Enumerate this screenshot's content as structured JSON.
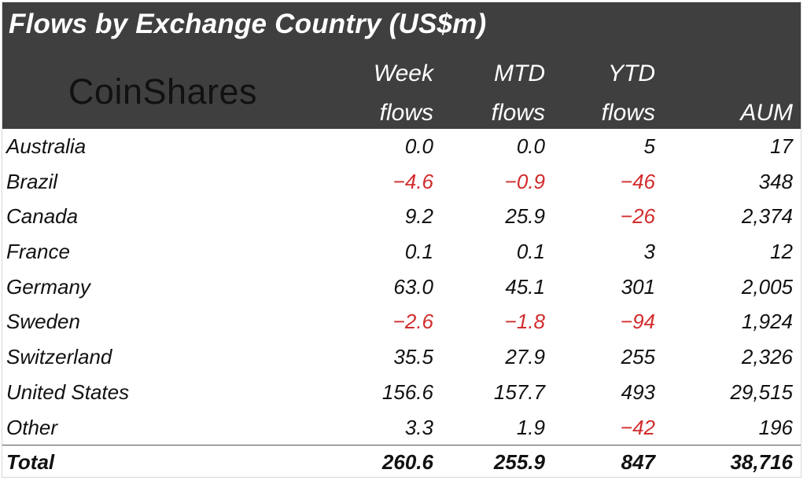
{
  "chart_data": {
    "type": "table",
    "title": "Flows by Exchange Country (US$m)",
    "logo": "CoinShares",
    "columns": [
      {
        "line1": "Week",
        "line2": "flows"
      },
      {
        "line1": "MTD",
        "line2": "flows"
      },
      {
        "line1": "YTD",
        "line2": "flows"
      },
      {
        "line1": "",
        "line2": "AUM"
      }
    ],
    "rows": [
      {
        "country": "Australia",
        "week": "0.0",
        "mtd": "0.0",
        "ytd": "5",
        "aum": "17"
      },
      {
        "country": "Brazil",
        "week": "-4.6",
        "mtd": "-0.9",
        "ytd": "-46",
        "aum": "348"
      },
      {
        "country": "Canada",
        "week": "9.2",
        "mtd": "25.9",
        "ytd": "-26",
        "aum": "2,374"
      },
      {
        "country": "France",
        "week": "0.1",
        "mtd": "0.1",
        "ytd": "3",
        "aum": "12"
      },
      {
        "country": "Germany",
        "week": "63.0",
        "mtd": "45.1",
        "ytd": "301",
        "aum": "2,005"
      },
      {
        "country": "Sweden",
        "week": "-2.6",
        "mtd": "-1.8",
        "ytd": "-94",
        "aum": "1,924"
      },
      {
        "country": "Switzerland",
        "week": "35.5",
        "mtd": "27.9",
        "ytd": "255",
        "aum": "2,326"
      },
      {
        "country": "United States",
        "week": "156.6",
        "mtd": "157.7",
        "ytd": "493",
        "aum": "29,515"
      },
      {
        "country": "Other",
        "week": "3.3",
        "mtd": "1.9",
        "ytd": "-42",
        "aum": "196"
      }
    ],
    "total": {
      "label": "Total",
      "week": "260.6",
      "mtd": "255.9",
      "ytd": "847",
      "aum": "38,716"
    },
    "colors": {
      "header_bg": "#3f3f3f",
      "header_text": "#ffffff",
      "negative": "#d22c2c",
      "text": "#111111"
    }
  }
}
